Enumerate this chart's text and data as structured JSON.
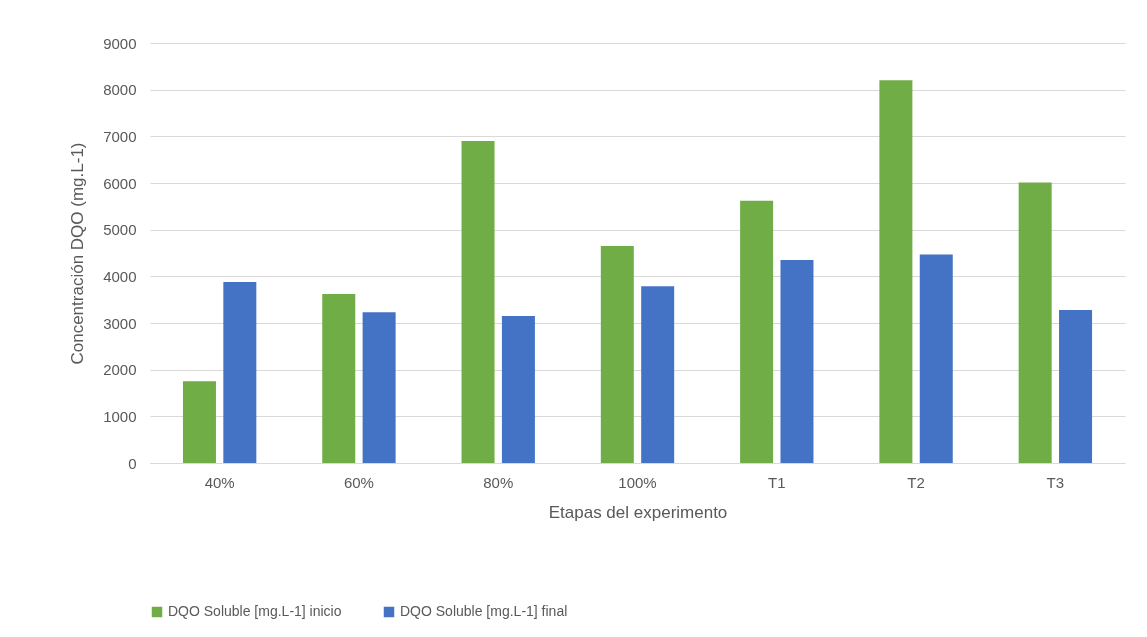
{
  "chart_data": {
    "type": "bar",
    "xlabel": "Etapas del experimento",
    "ylabel": "Concentración DQO (mg.L-1)",
    "categories": [
      "40%",
      "60%",
      "80%",
      "100%",
      "T1",
      "T2",
      "T3"
    ],
    "series": [
      {
        "name": "DQO Soluble [mg.L-1] inicio",
        "color": "#70ad47",
        "values": [
          1750,
          3620,
          6900,
          4650,
          5620,
          8200,
          6010
        ]
      },
      {
        "name": "DQO Soluble [mg.L-1] final",
        "color": "#4472c4",
        "values": [
          3880,
          3230,
          3150,
          3790,
          4350,
          4470,
          3280
        ]
      }
    ],
    "ylim": [
      0,
      9000
    ],
    "yticks": [
      0,
      1000,
      2000,
      3000,
      4000,
      5000,
      6000,
      7000,
      8000,
      9000
    ],
    "grid": "y",
    "legend": "bottom"
  }
}
